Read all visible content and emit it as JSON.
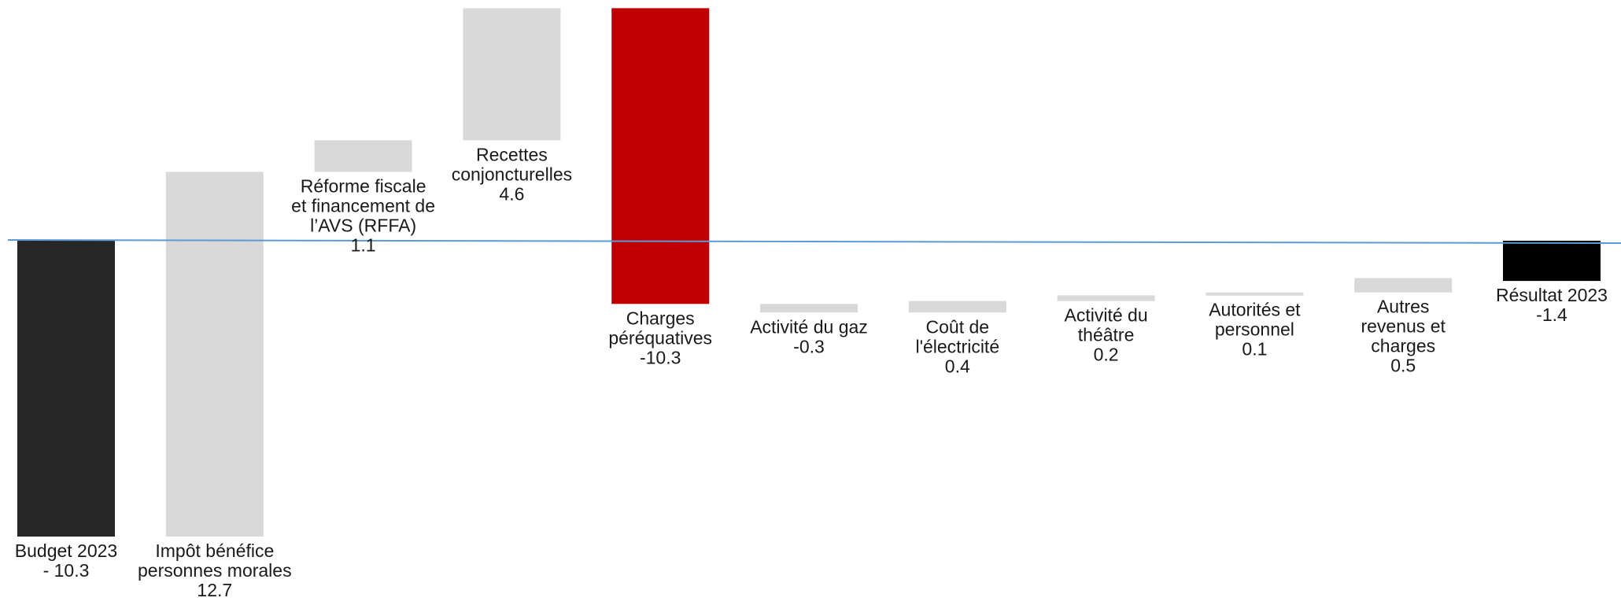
{
  "chart_data": {
    "type": "bar",
    "title": "",
    "xlabel": "",
    "ylabel": "",
    "grid": false,
    "legend": "none",
    "colors": {
      "total": "#262626",
      "result": "#000000",
      "step": "#d9d9d9",
      "highlight": "#c00000",
      "baseline": "#5b9bd5"
    },
    "categories": [
      "Budget 2023",
      "Impôt bénéfice personnes morales",
      "Réforme fiscale et financement de l’AVS (RFFA)",
      "Recettes conjoncturelles",
      "Charges péréquatives",
      "Activité du gaz",
      "Coût de l'électricité",
      "Activité du théâtre",
      "Autorités et personnel",
      "Autres revenus et charges",
      "Résultat 2023"
    ],
    "bars": [
      {
        "label_lines": [
          "Budget 2023",
          "- 10.3"
        ],
        "value": -10.3,
        "kind": "total",
        "start": 0,
        "end": -10.3
      },
      {
        "label_lines": [
          "Impôt bénéfice",
          "personnes morales",
          "12.7"
        ],
        "value": 12.7,
        "kind": "step",
        "start": -10.3,
        "end": 2.4
      },
      {
        "label_lines": [
          "Réforme fiscale",
          "et financement de",
          "l’AVS (RFFA)",
          "1.1"
        ],
        "value": 1.1,
        "kind": "step",
        "start": 2.4,
        "end": 3.5
      },
      {
        "label_lines": [
          "Recettes",
          "conjoncturelles",
          "4.6"
        ],
        "value": 4.6,
        "kind": "step",
        "start": 3.5,
        "end": 8.1
      },
      {
        "label_lines": [
          "Charges",
          "péréquatives",
          "-10.3"
        ],
        "value": -10.3,
        "kind": "highlight",
        "start": 8.1,
        "end": -2.2
      },
      {
        "label_lines": [
          "Activité du gaz",
          "-0.3"
        ],
        "value": -0.3,
        "kind": "step",
        "start": -2.2,
        "end": -2.5
      },
      {
        "label_lines": [
          "Coût de",
          "l'électricité",
          "0.4"
        ],
        "value": 0.4,
        "kind": "step",
        "start": -2.5,
        "end": -2.1
      },
      {
        "label_lines": [
          "Activité du",
          "théâtre",
          "0.2"
        ],
        "value": 0.2,
        "kind": "step",
        "start": -2.1,
        "end": -1.9
      },
      {
        "label_lines": [
          "Autorités et",
          "personnel",
          "0.1"
        ],
        "value": 0.1,
        "kind": "step",
        "start": -1.9,
        "end": -1.8
      },
      {
        "label_lines": [
          "Autres",
          "revenus et",
          "charges",
          "0.5"
        ],
        "value": 0.5,
        "kind": "step",
        "start": -1.8,
        "end": -1.3
      },
      {
        "label_lines": [
          "Résultat 2023",
          "-1.4"
        ],
        "value": -1.4,
        "kind": "result",
        "start": 0,
        "end": -1.4
      }
    ]
  }
}
